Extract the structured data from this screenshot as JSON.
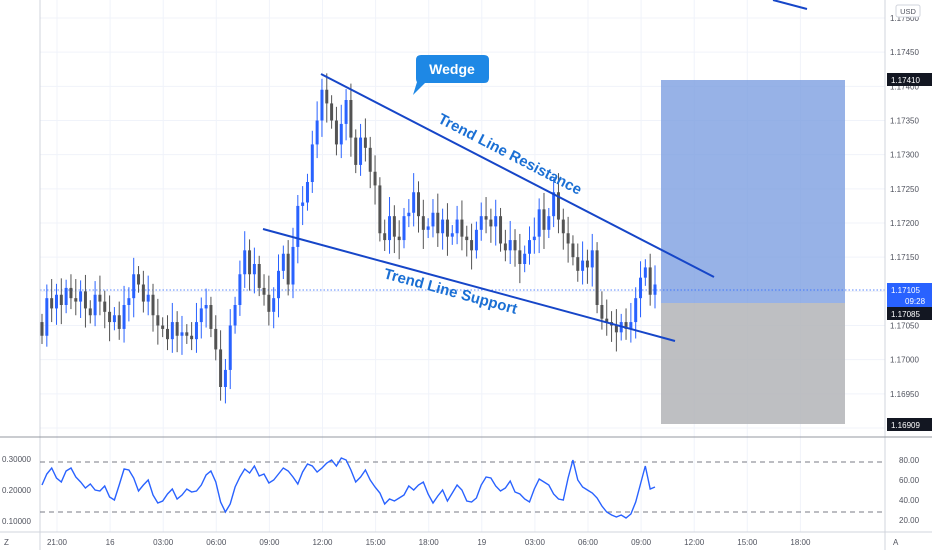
{
  "currency_label": "USD",
  "wedge_label": "Wedge",
  "resistance_label": "Trend Line Resistance",
  "support_label": "Trend Line Support",
  "price_badges": {
    "target": "1.17410",
    "current": "1.17105",
    "countdown": "09:28",
    "entry": "1.17085",
    "stop": "1.16909"
  },
  "rsi_ticks_left": [
    "0.30000",
    "0.20000",
    "0.10000"
  ],
  "rsi_ticks_right": [
    "80.00",
    "60.00",
    "40.00",
    "20.00"
  ],
  "corner_labels": {
    "left": "Z",
    "right": "A"
  },
  "colors": {
    "candle_up": "#2962ff",
    "candle_down": "#535353",
    "trend_line": "#1646c8",
    "annotation_text": "#1a6fd4",
    "target_zone": "#7d9fe1",
    "stop_zone": "#b3b4b7",
    "rsi_line": "#2962ff",
    "badge_bg": "#131722",
    "current_badge_bg": "#2962ff"
  },
  "chart_data": {
    "type": "candlestick",
    "symbol_quote": "USD",
    "ylim": [
      1.1692,
      1.1752
    ],
    "y_ticks": [
      "1.17500",
      "1.17450",
      "1.17400",
      "1.17350",
      "1.17300",
      "1.17250",
      "1.17200",
      "1.17150",
      "1.17100",
      "1.17050",
      "1.17000",
      "1.16950",
      "1.16900"
    ],
    "x_ticks": [
      "21:00",
      "16",
      "03:00",
      "06:00",
      "09:00",
      "12:00",
      "15:00",
      "18:00",
      "19",
      "03:00",
      "06:00",
      "09:00",
      "12:00",
      "15:00",
      "18:00"
    ],
    "candles_close": [
      1.17035,
      1.1709,
      1.17075,
      1.17095,
      1.1708,
      1.17105,
      1.1709,
      1.17085,
      1.171,
      1.17075,
      1.17065,
      1.17095,
      1.17085,
      1.1707,
      1.17055,
      1.17065,
      1.17045,
      1.1708,
      1.1709,
      1.17125,
      1.1711,
      1.17085,
      1.17095,
      1.17065,
      1.1705,
      1.17045,
      1.1703,
      1.17055,
      1.17035,
      1.1704,
      1.17035,
      1.1703,
      1.17055,
      1.17075,
      1.1708,
      1.17045,
      1.17015,
      1.1696,
      1.16985,
      1.1705,
      1.1708,
      1.17125,
      1.1716,
      1.17125,
      1.1714,
      1.17105,
      1.17095,
      1.1707,
      1.1709,
      1.1713,
      1.17155,
      1.1711,
      1.17165,
      1.17225,
      1.1723,
      1.1726,
      1.17315,
      1.1735,
      1.17395,
      1.17375,
      1.1735,
      1.17315,
      1.17345,
      1.1738,
      1.17325,
      1.17285,
      1.17325,
      1.1731,
      1.17275,
      1.17255,
      1.17185,
      1.17175,
      1.1721,
      1.1718,
      1.17175,
      1.1721,
      1.17215,
      1.17245,
      1.1721,
      1.1719,
      1.17195,
      1.17215,
      1.17185,
      1.17205,
      1.1718,
      1.17185,
      1.17205,
      1.1718,
      1.17175,
      1.1716,
      1.1719,
      1.1721,
      1.17205,
      1.17195,
      1.1721,
      1.1717,
      1.1716,
      1.17175,
      1.1716,
      1.1714,
      1.17155,
      1.17175,
      1.1718,
      1.1722,
      1.1719,
      1.1721,
      1.17245,
      1.17205,
      1.17185,
      1.1717,
      1.1715,
      1.1713,
      1.17145,
      1.17135,
      1.1716,
      1.1708,
      1.1706,
      1.17055,
      1.1705,
      1.1704,
      1.17055,
      1.17045,
      1.17055,
      1.1709,
      1.1712,
      1.17135,
      1.17095,
      1.1711
    ],
    "target_zone": [
      1.17085,
      1.1741
    ],
    "stop_zone": [
      1.16909,
      1.17085
    ],
    "rsi_series": [
      55,
      66,
      72,
      62,
      58,
      69,
      72,
      63,
      58,
      52,
      56,
      50,
      49,
      54,
      43,
      40,
      55,
      71,
      70,
      62,
      49,
      55,
      60,
      45,
      37,
      39,
      46,
      51,
      41,
      45,
      51,
      48,
      49,
      55,
      65,
      69,
      58,
      38,
      28,
      36,
      53,
      63,
      71,
      67,
      74,
      64,
      66,
      57,
      60,
      66,
      72,
      69,
      63,
      56,
      68,
      76,
      74,
      68,
      72,
      77,
      80,
      74,
      82,
      80,
      70,
      58,
      63,
      70,
      60,
      53,
      47,
      36,
      41,
      39,
      42,
      45,
      54,
      50,
      55,
      58,
      46,
      37,
      44,
      50,
      39,
      47,
      55,
      50,
      39,
      38,
      42,
      55,
      63,
      62,
      54,
      49,
      52,
      59,
      48,
      46,
      41,
      38,
      51,
      61,
      58,
      55,
      46,
      41,
      40,
      62,
      80,
      60,
      53,
      50,
      47,
      42,
      34,
      28,
      25,
      23,
      25,
      22,
      26,
      38,
      56,
      74,
      51,
      53
    ]
  }
}
